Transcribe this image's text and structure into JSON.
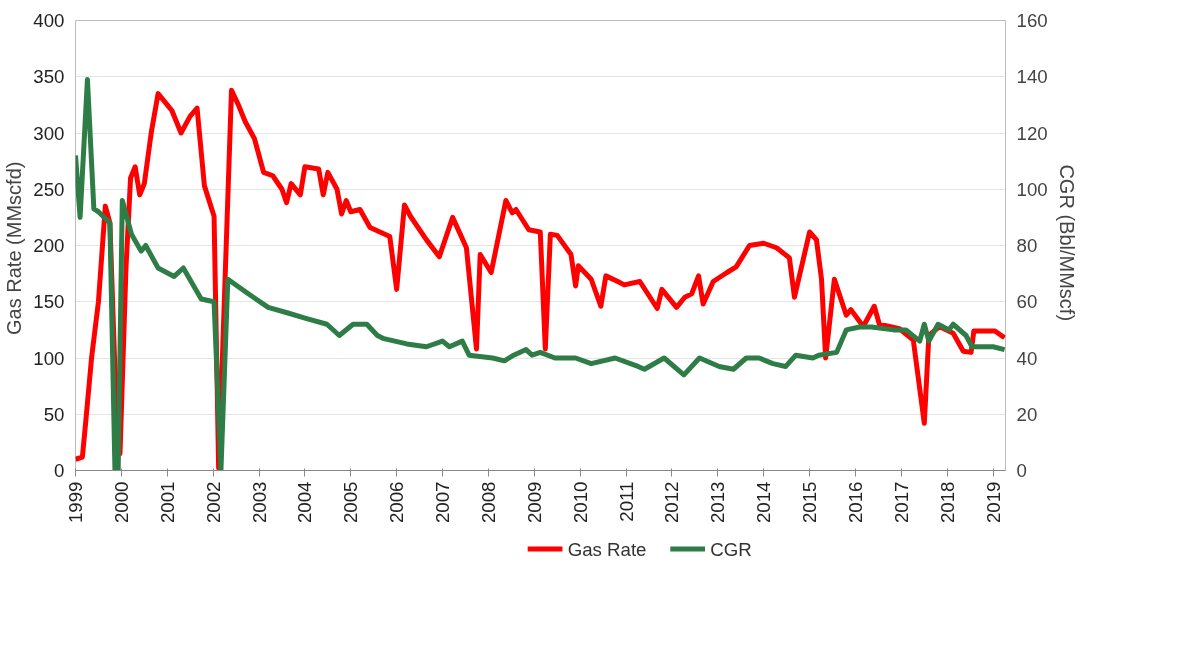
{
  "chart_data": {
    "type": "line",
    "ylabel": "Gas Rate  (MMscfd)",
    "y2label": "CGR  (Bbl/MMscf)",
    "xlim": [
      1999,
      2019.27
    ],
    "xticks": [
      1999,
      2000,
      2001,
      2002,
      2003,
      2004,
      2005,
      2006,
      2007,
      2008,
      2009,
      2010,
      2011,
      2012,
      2013,
      2014,
      2015,
      2016,
      2017,
      2018,
      2019
    ],
    "ylim": [
      0,
      400
    ],
    "yticks": [
      0,
      50,
      100,
      150,
      200,
      250,
      300,
      350,
      400
    ],
    "y2lim": [
      0,
      160
    ],
    "y2ticks": [
      0,
      20,
      40,
      60,
      80,
      100,
      120,
      140,
      160
    ],
    "grid": "y",
    "legend": "bottom",
    "line_style": "solid",
    "marker": "none",
    "series": [
      {
        "name": "Gas Rate",
        "color": "#ff0000",
        "x": [
          1999.0,
          1999.15,
          1999.22,
          1999.35,
          1999.5,
          1999.65,
          1999.75,
          1999.85,
          1999.97,
          2000.1,
          2000.2,
          2000.3,
          2000.4,
          2000.5,
          2000.65,
          2000.8,
          2001.0,
          2001.1,
          2001.3,
          2001.5,
          2001.65,
          2001.81,
          2002.02,
          2002.12,
          2002.4,
          2002.55,
          2002.7,
          2002.9,
          2003.0,
          2003.1,
          2003.3,
          2003.5,
          2003.6,
          2003.7,
          2003.9,
          2004.0,
          2004.3,
          2004.4,
          2004.5,
          2004.7,
          2004.8,
          2004.9,
          2005.0,
          2005.2,
          2005.42,
          2005.85,
          2006.0,
          2006.17,
          2006.3,
          2006.65,
          2006.93,
          2007.22,
          2007.52,
          2007.74,
          2007.82,
          2008.06,
          2008.38,
          2008.52,
          2008.6,
          2008.88,
          2009.13,
          2009.24,
          2009.35,
          2009.5,
          2009.8,
          2009.9,
          2009.96,
          2010.24,
          2010.45,
          2010.56,
          2010.82,
          2010.96,
          2011.3,
          2011.68,
          2011.78,
          2012.1,
          2012.28,
          2012.43,
          2012.58,
          2012.68,
          2012.9,
          2013.2,
          2013.4,
          2013.69,
          2014.0,
          2014.28,
          2014.56,
          2014.67,
          2015.0,
          2015.15,
          2015.26,
          2015.35,
          2015.54,
          2015.8,
          2015.9,
          2016.17,
          2016.41,
          2016.52,
          2016.96,
          2017.26,
          2017.5,
          2017.6,
          2017.83,
          2018.13,
          2018.35,
          2018.52,
          2018.58,
          2019.04,
          2019.25
        ],
        "values": [
          10,
          12,
          42,
          100,
          150,
          235,
          220,
          100,
          15,
          180,
          260,
          270,
          245,
          255,
          300,
          335,
          325,
          320,
          300,
          315,
          322,
          253,
          226,
          2,
          338,
          325,
          310,
          295,
          280,
          265,
          262,
          250,
          238,
          255,
          245,
          270,
          268,
          245,
          265,
          250,
          228,
          240,
          230,
          232,
          216,
          208,
          161,
          236,
          226,
          205,
          190,
          225,
          198,
          108,
          192,
          176,
          240,
          229,
          232,
          214,
          212,
          108,
          210,
          209,
          192,
          164,
          182,
          170,
          146,
          173,
          168,
          165,
          168,
          144,
          161,
          145,
          154,
          157,
          173,
          148,
          168,
          176,
          181,
          200,
          202,
          198,
          189,
          154,
          212,
          205,
          170,
          100,
          170,
          138,
          143,
          128,
          146,
          130,
          126,
          116,
          42,
          120,
          128,
          122,
          106,
          105,
          124,
          124,
          118
        ]
      },
      {
        "name": "CGR",
        "color": "#2e7d46",
        "axis": "y2",
        "x": [
          1999.0,
          1999.1,
          1999.26,
          1999.4,
          1999.5,
          1999.75,
          1999.86,
          1999.93,
          2000.02,
          2000.22,
          2000.43,
          2000.53,
          2000.8,
          2001.15,
          2001.35,
          2001.74,
          2002.02,
          2002.17,
          2002.32,
          2002.75,
          2003.2,
          2003.63,
          2004.04,
          2004.48,
          2004.75,
          2005.05,
          2005.35,
          2005.58,
          2005.7,
          2006.22,
          2006.65,
          2007.0,
          2007.15,
          2007.43,
          2007.58,
          2008.09,
          2008.35,
          2008.55,
          2008.82,
          2008.95,
          2009.13,
          2009.45,
          2009.9,
          2010.24,
          2010.76,
          2011.26,
          2011.4,
          2011.83,
          2012.26,
          2012.6,
          2013.03,
          2013.34,
          2013.62,
          2013.9,
          2014.2,
          2014.48,
          2014.7,
          2015.07,
          2015.2,
          2015.59,
          2015.8,
          2016.09,
          2016.35,
          2016.83,
          2017.1,
          2017.4,
          2017.5,
          2017.6,
          2017.8,
          2018.04,
          2018.13,
          2018.41,
          2018.54,
          2019.0,
          2019.25
        ],
        "values": [
          112,
          90,
          139,
          93,
          92,
          88,
          0,
          0,
          96,
          84,
          78,
          80,
          72,
          69,
          72,
          61,
          60,
          0,
          68,
          63,
          58,
          56,
          54,
          52,
          48,
          52,
          52,
          48,
          47,
          45,
          44,
          46,
          44,
          46,
          41,
          40,
          39,
          41,
          43,
          41,
          42,
          40,
          40,
          38,
          40,
          37,
          36,
          40,
          34,
          40,
          37,
          36,
          40,
          40,
          38,
          37,
          41,
          40,
          41,
          42,
          50,
          51,
          51,
          50,
          50,
          46,
          52,
          46,
          52,
          50,
          52,
          48,
          44,
          44,
          43
        ]
      }
    ]
  }
}
